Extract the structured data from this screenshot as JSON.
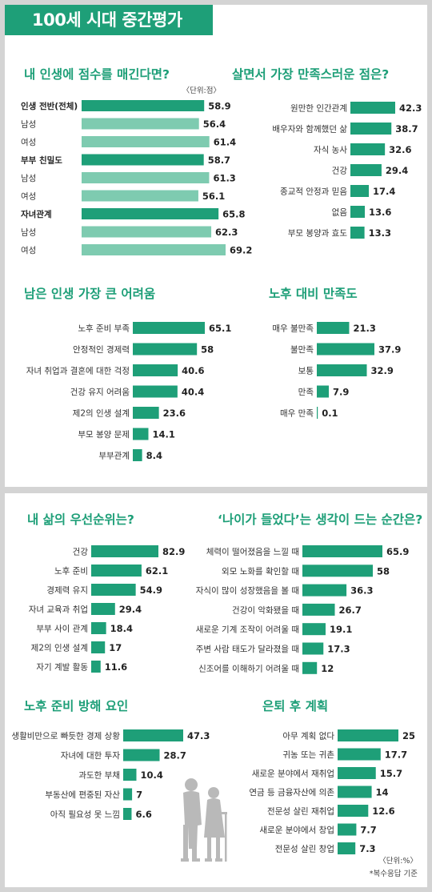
{
  "page_title": "100세 시대 중간평가",
  "colors": {
    "dark_bar": "#1e9f78",
    "light_bar": "#7ecbb0",
    "accent_text": "#1e9f78"
  },
  "unit_points": "〈단위:점〉",
  "unit_percent": "〈단위:%〉",
  "multi_response_note": "*복수응답 기준",
  "chart_data": [
    {
      "id": "score",
      "type": "bar",
      "orientation": "horizontal",
      "title": "내 인생에 점수를 매긴다면?",
      "categories": [
        "인생 전반(전체)",
        "남성",
        "여성",
        "부부 친밀도",
        "남성",
        "여성",
        "자녀관계",
        "남성",
        "여성"
      ],
      "values": [
        58.9,
        56.4,
        61.4,
        58.7,
        61.3,
        56.1,
        65.8,
        62.3,
        69.2
      ],
      "value_labels": [
        "58.9",
        "56.4",
        "61.4",
        "58.7",
        "61.3",
        "56.1",
        "65.8",
        "62.3",
        "69.2"
      ],
      "bar_tone": [
        "dark",
        "light",
        "light",
        "dark",
        "light",
        "light",
        "dark",
        "light",
        "light"
      ]
    },
    {
      "id": "satisfaction",
      "type": "bar",
      "orientation": "horizontal",
      "title": "살면서 가장 만족스러운 점은?",
      "categories": [
        "원만한 인간관계",
        "배우자와 함께했던 삶",
        "자식 농사",
        "건강",
        "종교적 안정과 믿음",
        "없음",
        "부모 봉양과 효도"
      ],
      "values": [
        42.3,
        38.7,
        32.6,
        29.4,
        17.4,
        13.6,
        13.3
      ],
      "value_labels": [
        "42.3",
        "38.7",
        "32.6",
        "29.4",
        "17.4",
        "13.6",
        "13.3"
      ]
    },
    {
      "id": "difficulty",
      "type": "bar",
      "orientation": "horizontal",
      "title": "남은 인생 가장 큰 어려움",
      "categories": [
        "노후 준비 부족",
        "안정적인 경제력",
        "자녀 취업과 결혼에 대한 걱정",
        "건강 유지 어려움",
        "제2의 인생 설계",
        "부모 봉양 문제",
        "부부관계"
      ],
      "values": [
        65.1,
        58,
        40.6,
        40.4,
        23.6,
        14.1,
        8.4
      ],
      "value_labels": [
        "65.1",
        "58",
        "40.6",
        "40.4",
        "23.6",
        "14.1",
        "8.4"
      ]
    },
    {
      "id": "retire_satisfaction",
      "type": "bar",
      "orientation": "horizontal",
      "title": "노후 대비 만족도",
      "categories": [
        "매우 불만족",
        "불만족",
        "보통",
        "만족",
        "매우 만족"
      ],
      "values": [
        21.3,
        37.9,
        32.9,
        7.9,
        0.1
      ],
      "value_labels": [
        "21.3",
        "37.9",
        "32.9",
        "7.9",
        "0.1"
      ]
    },
    {
      "id": "priority",
      "type": "bar",
      "orientation": "horizontal",
      "title": "내 삶의 우선순위는?",
      "categories": [
        "건강",
        "노후 준비",
        "경제력 유지",
        "자녀 교육과 취업",
        "부부 사이 관계",
        "제2의 인생 설계",
        "자기 계발 활동"
      ],
      "values": [
        82.9,
        62.1,
        54.9,
        29.4,
        18.4,
        17,
        11.6
      ],
      "value_labels": [
        "82.9",
        "62.1",
        "54.9",
        "29.4",
        "18.4",
        "17",
        "11.6"
      ]
    },
    {
      "id": "feel_old",
      "type": "bar",
      "orientation": "horizontal",
      "title": "‘나이가 들었다’는 생각이 드는 순간은?",
      "categories": [
        "체력이 떨어졌음을 느낄 때",
        "외모 노화를 확인할 때",
        "자식이 많이 성장했음을 볼 때",
        "건강이 악화됐을 때",
        "새로운 기계 조작이 어려울 때",
        "주변 사람 태도가 달라졌을 때",
        "신조어를 이해하기 어려울 때"
      ],
      "values": [
        65.9,
        58,
        36.3,
        26.7,
        19.1,
        17.3,
        12
      ],
      "value_labels": [
        "65.9",
        "58",
        "36.3",
        "26.7",
        "19.1",
        "17.3",
        "12"
      ]
    },
    {
      "id": "obstacles",
      "type": "bar",
      "orientation": "horizontal",
      "title": "노후 준비 방해 요인",
      "categories": [
        "생활비만으로 빠듯한 경제 상황",
        "자녀에 대한 투자",
        "과도한 부채",
        "부동산에 편중된 자산",
        "아직 필요성 못 느낌"
      ],
      "values": [
        47.3,
        28.7,
        10.4,
        7,
        6.6
      ],
      "value_labels": [
        "47.3",
        "28.7",
        "10.4",
        "7",
        "6.6"
      ]
    },
    {
      "id": "retire_plan",
      "type": "bar",
      "orientation": "horizontal",
      "title": "은퇴 후 계획",
      "categories": [
        "아무 계획 없다",
        "귀농 또는 귀촌",
        "새로운 분야에서 재취업",
        "연금 등 금융자산에 의존",
        "전문성 살린 재취업",
        "새로운 분야에서 창업",
        "전문성 살린 창업"
      ],
      "values": [
        25,
        17.7,
        15.7,
        14,
        12.6,
        7.7,
        7.3
      ],
      "value_labels": [
        "25",
        "17.7",
        "15.7",
        "14",
        "12.6",
        "7.7",
        "7.3"
      ]
    }
  ]
}
